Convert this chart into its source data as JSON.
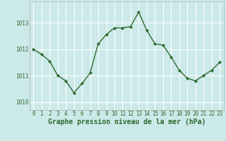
{
  "x": [
    0,
    1,
    2,
    3,
    4,
    5,
    6,
    7,
    8,
    9,
    10,
    11,
    12,
    13,
    14,
    15,
    16,
    17,
    18,
    19,
    20,
    21,
    22,
    23
  ],
  "y": [
    1012.0,
    1011.8,
    1011.55,
    1011.0,
    1010.8,
    1010.35,
    1010.7,
    1011.1,
    1012.2,
    1012.55,
    1012.8,
    1012.8,
    1012.85,
    1013.4,
    1012.7,
    1012.2,
    1012.15,
    1011.7,
    1011.2,
    1010.9,
    1010.8,
    1011.0,
    1011.2,
    1011.5
  ],
  "line_color": "#2d6a2d",
  "marker": "D",
  "marker_size": 2.0,
  "line_width": 1.0,
  "bg_color": "#cce9e9",
  "grid_color": "#ffffff",
  "xlabel": "Graphe pression niveau de la mer (hPa)",
  "xlabel_color": "#2d6a2d",
  "xlabel_fontsize": 7,
  "tick_color": "#2d6a2d",
  "tick_fontsize": 5.5,
  "yticks": [
    1010,
    1011,
    1012,
    1013
  ],
  "ylim": [
    1009.7,
    1013.8
  ],
  "xlim": [
    -0.5,
    23.5
  ]
}
